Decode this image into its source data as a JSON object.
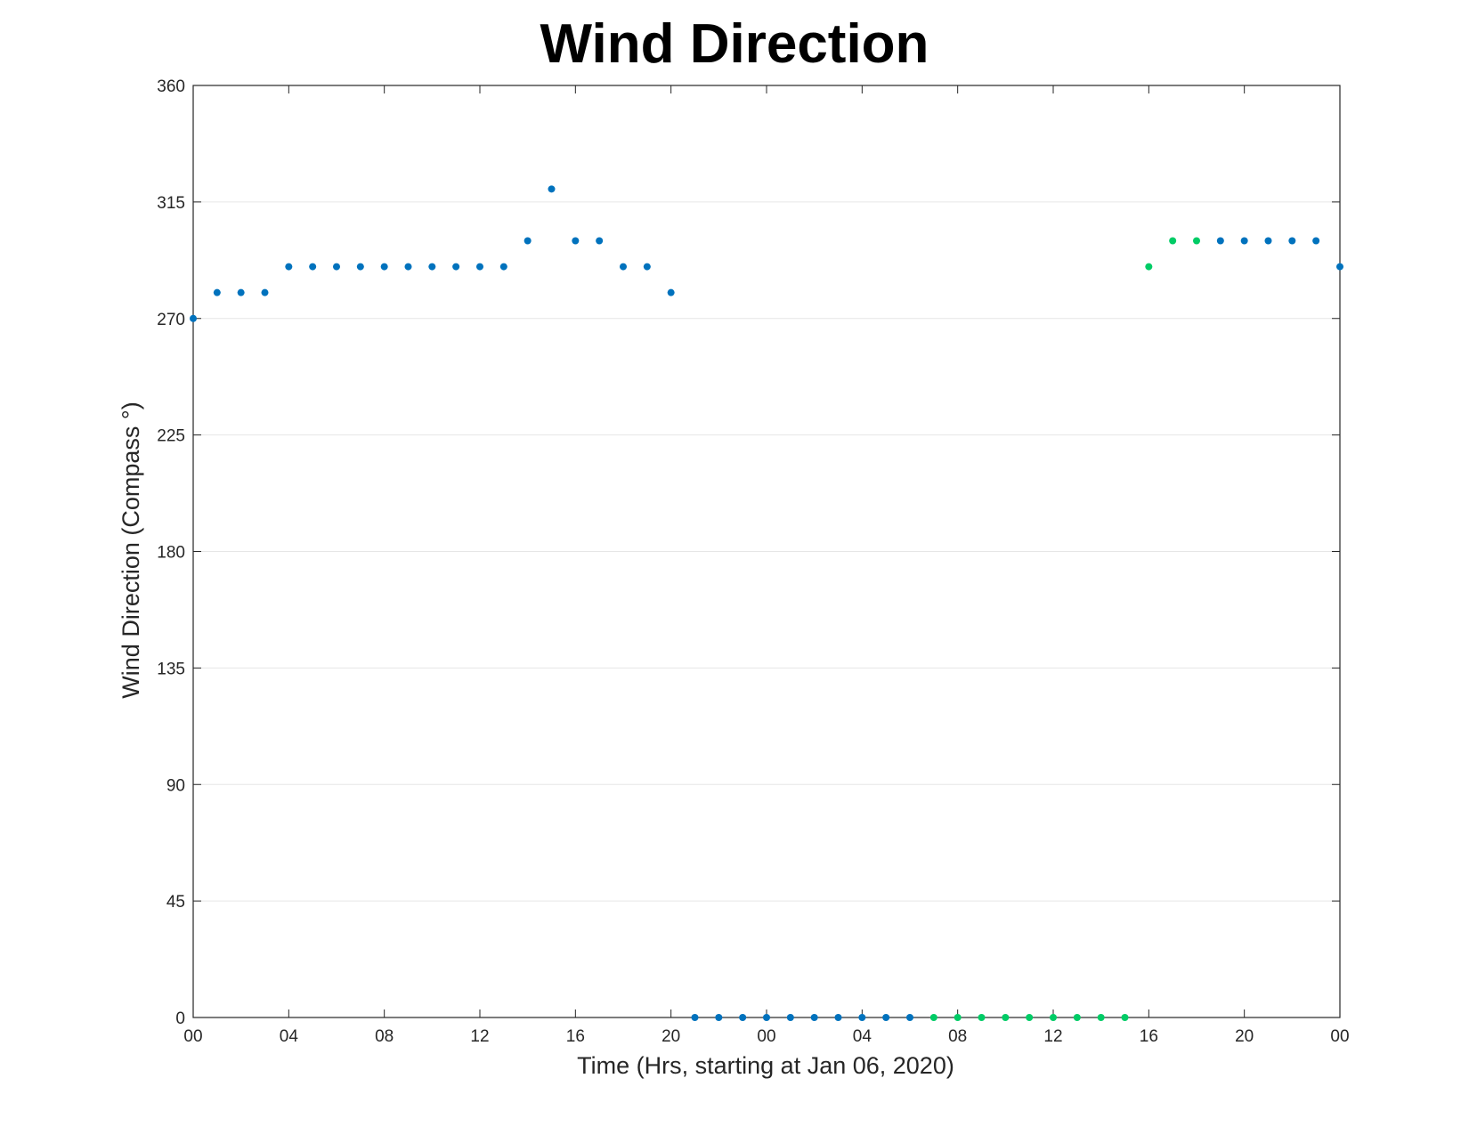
{
  "chart_data": {
    "type": "scatter",
    "title": "Wind Direction",
    "xlabel": "Time (Hrs, starting at Jan 06, 2020)",
    "ylabel": "Wind Direction (Compass °)",
    "x_unit": "hours",
    "xlim": [
      "2020-01-06 00:00",
      "2020-01-08 00:00"
    ],
    "ylim": [
      0,
      360
    ],
    "yticks": [
      0,
      45,
      90,
      135,
      180,
      225,
      270,
      315,
      360
    ],
    "xtick_labels": [
      "00",
      "04",
      "08",
      "12",
      "16",
      "20",
      "00",
      "04",
      "08",
      "12",
      "16",
      "20",
      "00"
    ],
    "xtick_times": [
      "2020-01-06 00:00",
      "2020-01-06 04:00",
      "2020-01-06 08:00",
      "2020-01-06 12:00",
      "2020-01-06 16:00",
      "2020-01-06 20:00",
      "2020-01-07 00:00",
      "2020-01-07 04:00",
      "2020-01-07 08:00",
      "2020-01-07 12:00",
      "2020-01-07 16:00",
      "2020-01-07 20:00",
      "2020-01-08 00:00"
    ],
    "grid": "horizontal",
    "colors": {
      "blue": "#0072BD",
      "green": "#00CC66"
    },
    "series": [
      {
        "color": "#0072BD",
        "points": [
          {
            "x": "2020-01-06 00:00",
            "y": 270
          },
          {
            "x": "2020-01-06 01:00",
            "y": 280
          },
          {
            "x": "2020-01-06 02:00",
            "y": 280
          },
          {
            "x": "2020-01-06 03:00",
            "y": 280
          },
          {
            "x": "2020-01-06 04:00",
            "y": 290
          },
          {
            "x": "2020-01-06 05:00",
            "y": 290
          },
          {
            "x": "2020-01-06 06:00",
            "y": 290
          },
          {
            "x": "2020-01-06 07:00",
            "y": 290
          },
          {
            "x": "2020-01-06 08:00",
            "y": 290
          },
          {
            "x": "2020-01-06 09:00",
            "y": 290
          },
          {
            "x": "2020-01-06 10:00",
            "y": 290
          },
          {
            "x": "2020-01-06 11:00",
            "y": 290
          },
          {
            "x": "2020-01-06 12:00",
            "y": 290
          },
          {
            "x": "2020-01-06 13:00",
            "y": 290
          },
          {
            "x": "2020-01-06 14:00",
            "y": 300
          },
          {
            "x": "2020-01-06 15:00",
            "y": 320
          },
          {
            "x": "2020-01-06 16:00",
            "y": 300
          },
          {
            "x": "2020-01-06 17:00",
            "y": 300
          },
          {
            "x": "2020-01-06 18:00",
            "y": 290
          },
          {
            "x": "2020-01-06 19:00",
            "y": 290
          },
          {
            "x": "2020-01-06 20:00",
            "y": 280
          },
          {
            "x": "2020-01-06 21:00",
            "y": 0
          },
          {
            "x": "2020-01-06 22:00",
            "y": 0
          },
          {
            "x": "2020-01-06 23:00",
            "y": 0
          },
          {
            "x": "2020-01-07 00:00",
            "y": 0
          },
          {
            "x": "2020-01-07 01:00",
            "y": 0
          },
          {
            "x": "2020-01-07 02:00",
            "y": 0
          },
          {
            "x": "2020-01-07 03:00",
            "y": 0
          },
          {
            "x": "2020-01-07 04:00",
            "y": 0
          },
          {
            "x": "2020-01-07 05:00",
            "y": 0
          },
          {
            "x": "2020-01-07 06:00",
            "y": 0
          },
          {
            "x": "2020-01-07 19:00",
            "y": 300
          },
          {
            "x": "2020-01-07 20:00",
            "y": 300
          },
          {
            "x": "2020-01-07 21:00",
            "y": 300
          },
          {
            "x": "2020-01-07 22:00",
            "y": 300
          },
          {
            "x": "2020-01-07 23:00",
            "y": 300
          },
          {
            "x": "2020-01-08 00:00",
            "y": 290
          }
        ]
      },
      {
        "color": "#00CC66",
        "points": [
          {
            "x": "2020-01-07 07:00",
            "y": 0
          },
          {
            "x": "2020-01-07 08:00",
            "y": 0
          },
          {
            "x": "2020-01-07 09:00",
            "y": 0
          },
          {
            "x": "2020-01-07 10:00",
            "y": 0
          },
          {
            "x": "2020-01-07 11:00",
            "y": 0
          },
          {
            "x": "2020-01-07 12:00",
            "y": 0
          },
          {
            "x": "2020-01-07 13:00",
            "y": 0
          },
          {
            "x": "2020-01-07 14:00",
            "y": 0
          },
          {
            "x": "2020-01-07 15:00",
            "y": 0
          },
          {
            "x": "2020-01-07 16:00",
            "y": 290
          },
          {
            "x": "2020-01-07 17:00",
            "y": 300
          },
          {
            "x": "2020-01-07 18:00",
            "y": 300
          }
        ]
      }
    ]
  }
}
